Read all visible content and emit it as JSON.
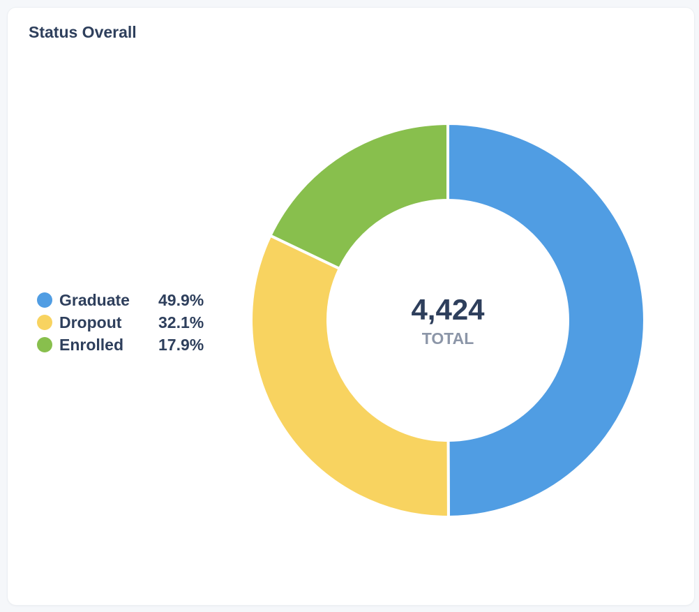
{
  "card": {
    "title": "Status Overall"
  },
  "chart_data": {
    "type": "pie",
    "style": "donut",
    "categories": [
      "Graduate",
      "Dropout",
      "Enrolled"
    ],
    "values": [
      49.9,
      32.1,
      17.9
    ],
    "value_labels": [
      "49.9%",
      "32.1%",
      "17.9%"
    ],
    "colors": [
      "#509de3",
      "#f8d360",
      "#88bf4d"
    ],
    "center": {
      "total": "4,424",
      "caption": "TOTAL"
    },
    "legend": {
      "placement": "left"
    }
  }
}
